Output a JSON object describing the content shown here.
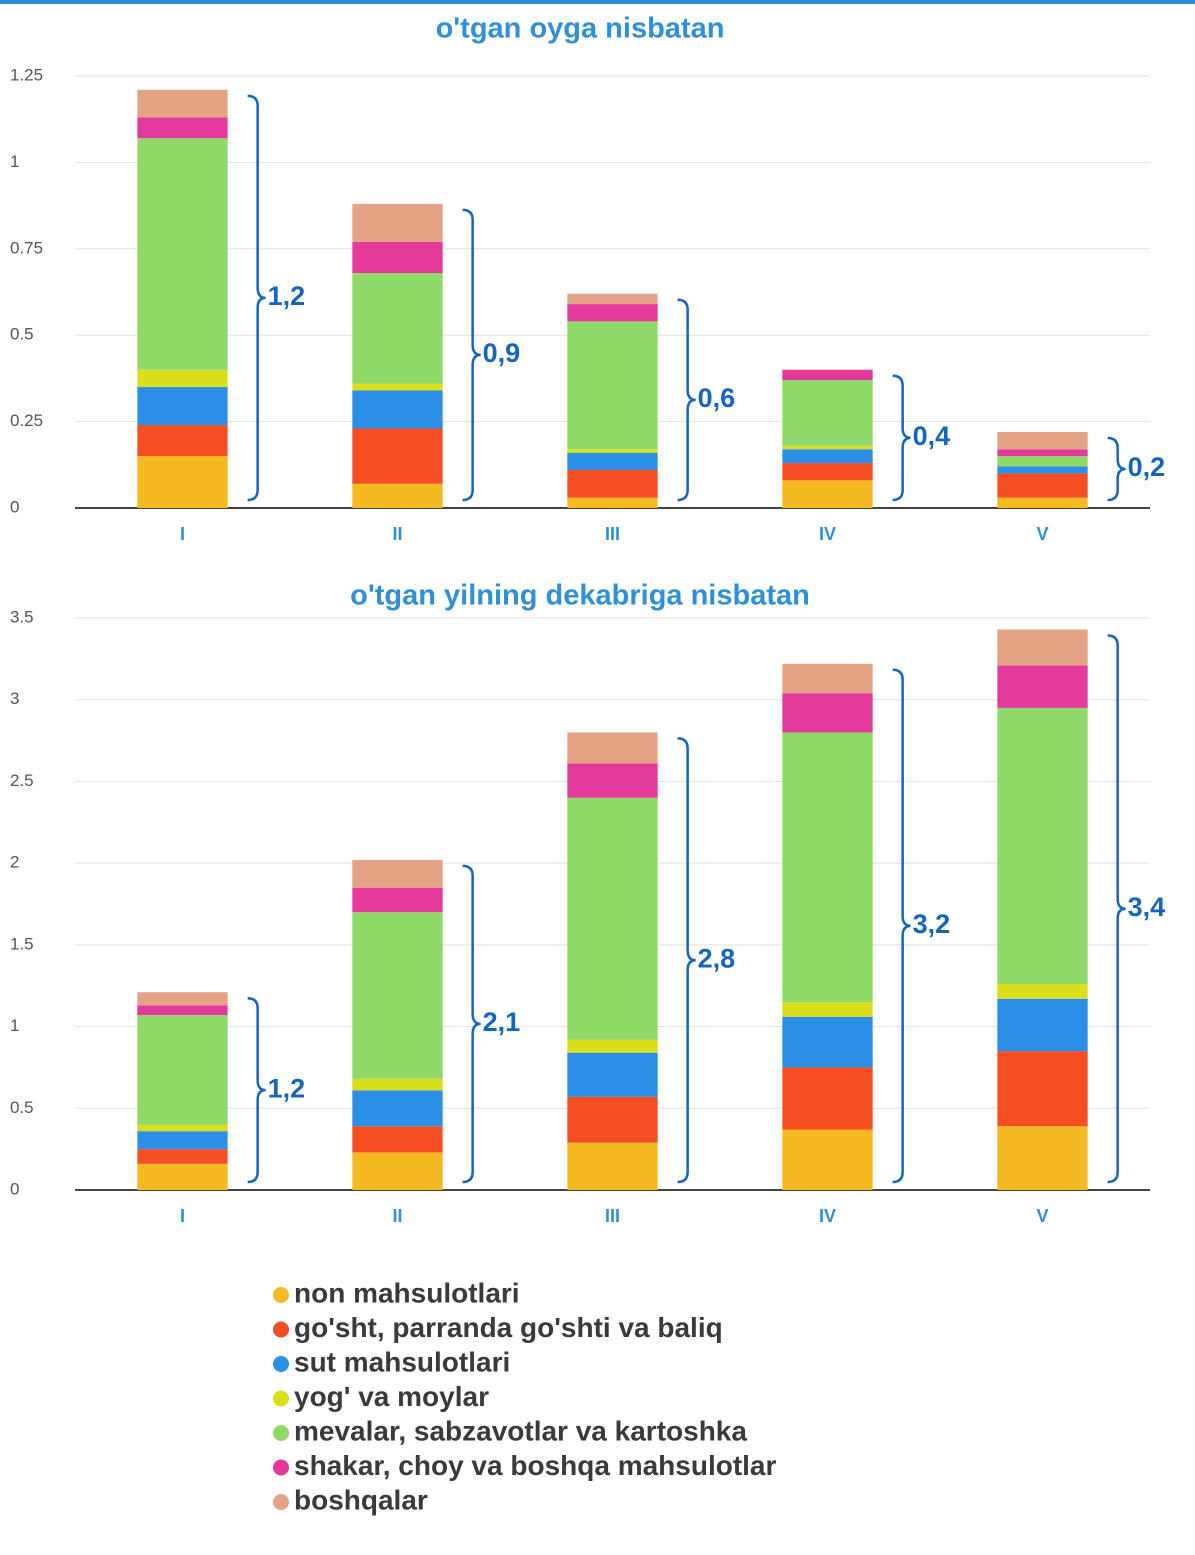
{
  "chart_data": [
    {
      "type": "stacked_bar",
      "title": "o'tgan oyga nisbatan",
      "categories": [
        "I",
        "II",
        "III",
        "IV",
        "V"
      ],
      "annotations": [
        "1,2",
        "0,9",
        "0,6",
        "0,4",
        "0,2"
      ],
      "ylim": [
        0,
        1.25
      ],
      "yticks": [
        0,
        0.25,
        0.5,
        0.75,
        1,
        1.25
      ],
      "grid": true,
      "series": [
        {
          "name": "non mahsulotlari",
          "color": "#f5b921",
          "values": [
            0.15,
            0.07,
            0.03,
            0.08,
            0.03
          ]
        },
        {
          "name": "go'sht, parranda go'shti va baliq",
          "color": "#f54e23",
          "values": [
            0.09,
            0.16,
            0.08,
            0.05,
            0.07
          ]
        },
        {
          "name": "sut mahsulotlari",
          "color": "#2b8fe8",
          "values": [
            0.11,
            0.11,
            0.05,
            0.04,
            0.02
          ]
        },
        {
          "name": "yog' va moylar",
          "color": "#d9df1a",
          "values": [
            0.05,
            0.02,
            0.01,
            0.01,
            0
          ]
        },
        {
          "name": "mevalar, sabzavotlar va kartoshka",
          "color": "#8fd968",
          "values": [
            0.67,
            0.32,
            0.37,
            0.19,
            0.03
          ]
        },
        {
          "name": "shakar, choy va boshqa mahsulotlar",
          "color": "#e2399a",
          "values": [
            0.06,
            0.09,
            0.05,
            0.03,
            0.02
          ]
        },
        {
          "name": "boshqalar",
          "color": "#e5a386",
          "values": [
            0.08,
            0.11,
            0.03,
            0,
            0.05
          ]
        }
      ]
    },
    {
      "type": "stacked_bar",
      "title": "o'tgan yilning dekabriga nisbatan",
      "categories": [
        "I",
        "II",
        "III",
        "IV",
        "V"
      ],
      "annotations": [
        "1,2",
        "2,1",
        "2,8",
        "3,2",
        "3,4"
      ],
      "ylim": [
        0,
        3.5
      ],
      "yticks": [
        0,
        0.5,
        1,
        1.5,
        2,
        2.5,
        3,
        3.5
      ],
      "grid": true,
      "series": [
        {
          "color": "#f5b921",
          "values": [
            0.16,
            0.23,
            0.29,
            0.37,
            0.39
          ]
        },
        {
          "color": "#f54e23",
          "values": [
            0.09,
            0.16,
            0.28,
            0.38,
            0.46
          ]
        },
        {
          "color": "#2b8fe8",
          "values": [
            0.11,
            0.22,
            0.27,
            0.31,
            0.32
          ]
        },
        {
          "color": "#d9df1a",
          "values": [
            0.04,
            0.07,
            0.08,
            0.09,
            0.09
          ]
        },
        {
          "color": "#8fd968",
          "values": [
            0.67,
            1.02,
            1.48,
            1.65,
            1.69
          ]
        },
        {
          "color": "#e2399a",
          "values": [
            0.06,
            0.15,
            0.21,
            0.24,
            0.26
          ]
        },
        {
          "color": "#e5a386",
          "values": [
            0.08,
            0.17,
            0.19,
            0.18,
            0.22
          ]
        }
      ]
    }
  ]
}
